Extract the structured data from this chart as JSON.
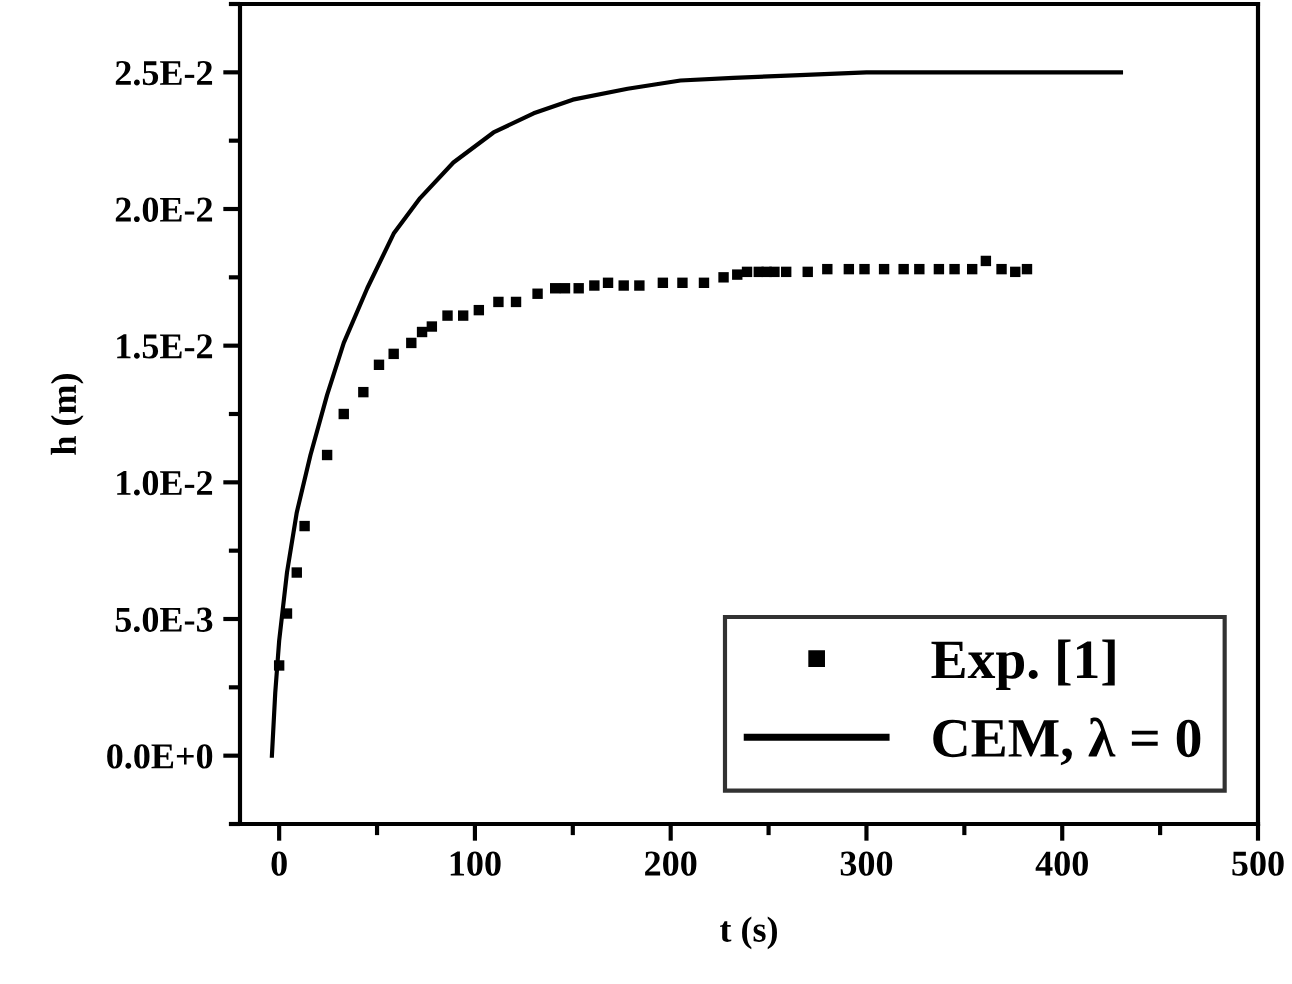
{
  "chart_data": {
    "type": "scatter",
    "xlabel": "t (s)",
    "ylabel": "h (m)",
    "xlim": [
      -20,
      500
    ],
    "ylim": [
      -0.0025,
      0.0275
    ],
    "xticks": [
      0,
      100,
      200,
      300,
      400,
      500
    ],
    "yticks": [
      {
        "value": 0,
        "label": "0.0E+0"
      },
      {
        "value": 0.005,
        "label": "5.0E-3"
      },
      {
        "value": 0.01,
        "label": "1.0E-2"
      },
      {
        "value": 0.015,
        "label": "1.5E-2"
      },
      {
        "value": 0.02,
        "label": "2.0E-2"
      },
      {
        "value": 0.025,
        "label": "2.5E-2"
      }
    ],
    "legend": "bottom right",
    "grid": false,
    "series": [
      {
        "name": "Exp. [1]",
        "marker": "square",
        "color": "#000000",
        "x": [
          0,
          4,
          9,
          13,
          24.5,
          33,
          43,
          51,
          58.5,
          67.5,
          73,
          78,
          86,
          94,
          102,
          112,
          121,
          132,
          141,
          146,
          153,
          161,
          168,
          176,
          184,
          196,
          206,
          217,
          227,
          234,
          239,
          245,
          249,
          253,
          259,
          270,
          280,
          291,
          299,
          309,
          319,
          327,
          337,
          345,
          354,
          361,
          369,
          376,
          382
        ],
        "values": [
          0.0033,
          0.0052,
          0.0067,
          0.0084,
          0.011,
          0.0125,
          0.0133,
          0.0143,
          0.0147,
          0.0151,
          0.0155,
          0.0157,
          0.0161,
          0.0161,
          0.0163,
          0.0166,
          0.0166,
          0.0169,
          0.0171,
          0.0171,
          0.0171,
          0.0172,
          0.0173,
          0.0172,
          0.0172,
          0.0173,
          0.0173,
          0.0173,
          0.0175,
          0.0176,
          0.0177,
          0.0177,
          0.0177,
          0.0177,
          0.0177,
          0.0177,
          0.0178,
          0.0178,
          0.0178,
          0.0178,
          0.0178,
          0.0178,
          0.0178,
          0.0178,
          0.0178,
          0.0181,
          0.0178,
          0.0177,
          0.0178
        ]
      },
      {
        "name": "CEM, λ = 0",
        "type": "line",
        "line_style": "solid",
        "color": "#000000",
        "x": [
          -3.7,
          -2,
          0,
          4,
          9,
          16,
          24.5,
          33,
          45,
          58.5,
          72,
          89,
          109.5,
          130,
          150,
          178,
          205,
          232,
          266,
          300,
          350,
          430
        ],
        "values": [
          0,
          0.0023,
          0.0042,
          0.0067,
          0.0089,
          0.011,
          0.0132,
          0.0151,
          0.0171,
          0.0191,
          0.0204,
          0.0217,
          0.0228,
          0.0235,
          0.024,
          0.0244,
          0.0247,
          0.0248,
          0.0249,
          0.025,
          0.025,
          0.025
        ]
      }
    ]
  }
}
